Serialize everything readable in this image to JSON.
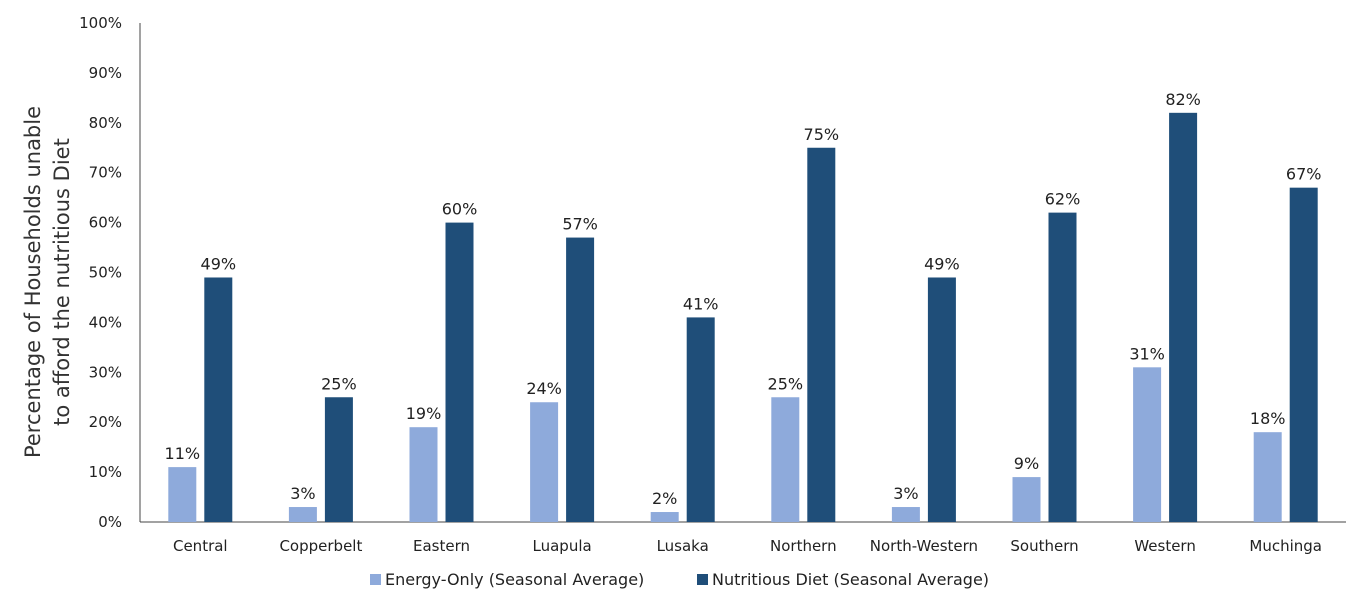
{
  "chart_data": {
    "type": "bar",
    "ylabel_line1": "Percentage of Households unable",
    "ylabel_line2": "to afford the nutritious Diet",
    "xlabel": "",
    "ylim": [
      0,
      100
    ],
    "yticks": [
      "0%",
      "10%",
      "20%",
      "30%",
      "40%",
      "50%",
      "60%",
      "70%",
      "80%",
      "90%",
      "100%"
    ],
    "categories": [
      "Central",
      "Copperbelt",
      "Eastern",
      "Luapula",
      "Lusaka",
      "Northern",
      "North-Western",
      "Southern",
      "Western",
      "Muchinga"
    ],
    "series": [
      {
        "name": "Energy-Only (Seasonal Average)",
        "color": "#8eaadb",
        "values": [
          11,
          3,
          19,
          24,
          2,
          25,
          3,
          9,
          31,
          18
        ],
        "labels": [
          "11%",
          "3%",
          "19%",
          "24%",
          "2%",
          "25%",
          "3%",
          "9%",
          "31%",
          "18%"
        ]
      },
      {
        "name": "Nutritious Diet (Seasonal Average)",
        "color": "#1f4e79",
        "values": [
          49,
          25,
          60,
          57,
          41,
          75,
          49,
          62,
          82,
          67
        ],
        "labels": [
          "49%",
          "25%",
          "60%",
          "57%",
          "41%",
          "75%",
          "49%",
          "62%",
          "82%",
          "67%"
        ]
      }
    ],
    "legend_position": "bottom",
    "grid": false
  }
}
